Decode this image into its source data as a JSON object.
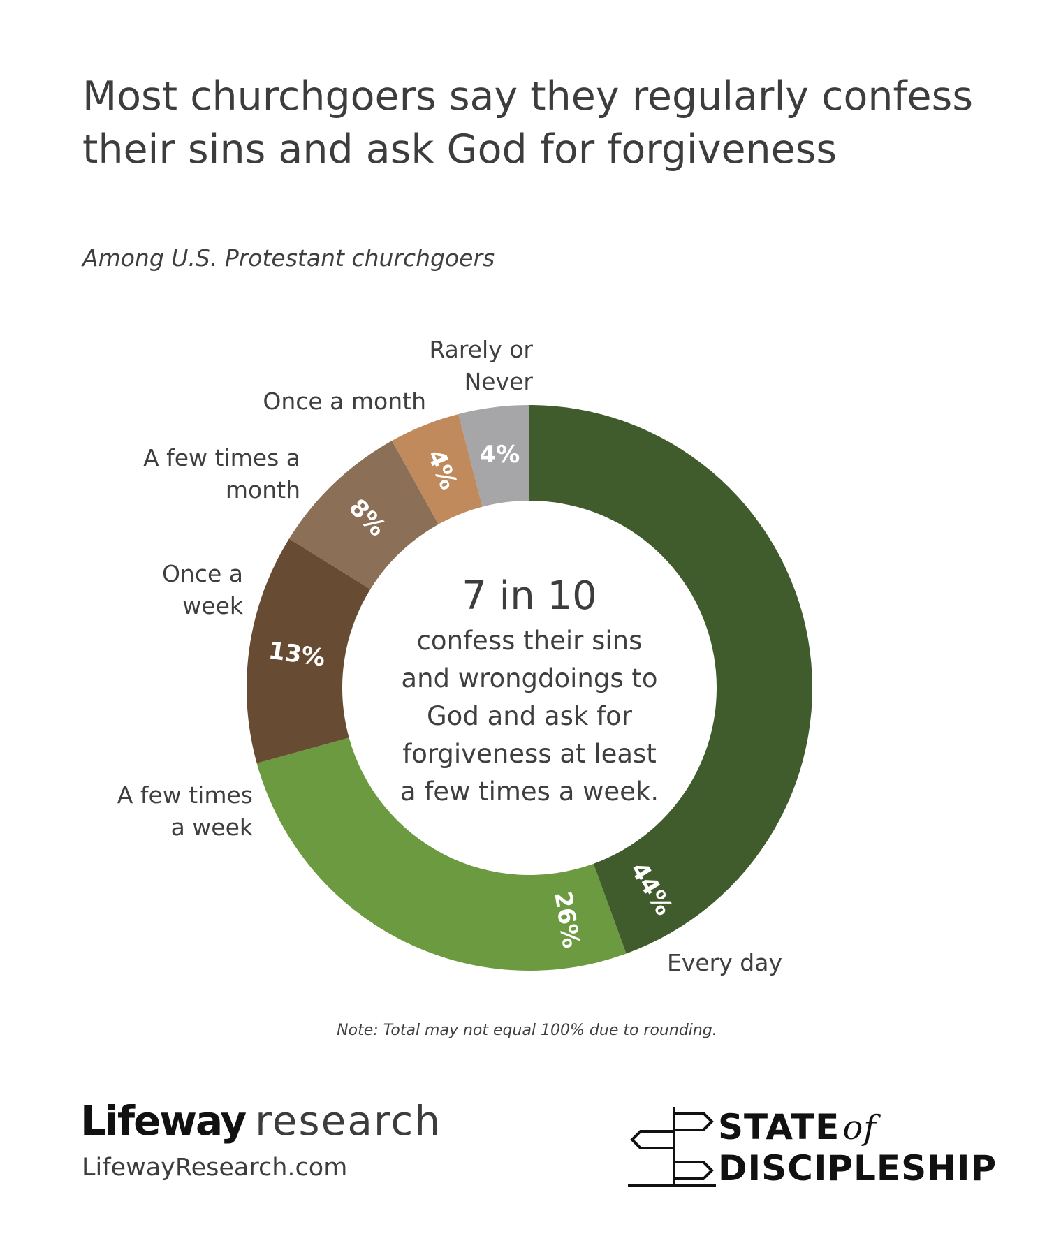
{
  "title": "Most churchgoers say they regularly confess their sins and ask God for forgiveness",
  "subtitle": "Among U.S. Protestant churchgoers",
  "center": {
    "headline": "7 in 10",
    "lines": [
      "confess their sins",
      "and wrongdoings to",
      "God and ask for",
      "forgiveness at least",
      "a few times a week."
    ]
  },
  "note": "Note: Total may not equal 100% due to rounding.",
  "branding": {
    "lifeway_bold": "Lifeway",
    "lifeway_light": "research",
    "url": "LifewayResearch.com",
    "sod_line1": "STATE",
    "sod_of": "of",
    "sod_line2": "DISCIPLESHIP",
    "sod_icon": "signpost-icon"
  },
  "chart_data": {
    "type": "pie",
    "donut": true,
    "title": "Most churchgoers say they regularly confess their sins and ask God for forgiveness",
    "subtitle": "Among U.S. Protestant churchgoers",
    "categories": [
      "Every day",
      "A few times a week",
      "Once a week",
      "A few times a month",
      "Once a month",
      "Rarely or Never"
    ],
    "values": [
      44,
      26,
      13,
      8,
      4,
      4
    ],
    "data_labels": [
      "44%",
      "26%",
      "13%",
      "8%",
      "4%",
      "4%"
    ],
    "category_label_lines": [
      [
        "Every day"
      ],
      [
        "A few times",
        "a week"
      ],
      [
        "Once a",
        "week"
      ],
      [
        "A few times a",
        "month"
      ],
      [
        "Once a month"
      ],
      [
        "Rarely or",
        "Never"
      ]
    ],
    "colors": [
      "#415c2c",
      "#6c9a40",
      "#674c33",
      "#8c6f57",
      "#c08a5c",
      "#a6a5a7"
    ],
    "start": "top",
    "direction": "clockwise",
    "legend": "none (direct labels)"
  }
}
